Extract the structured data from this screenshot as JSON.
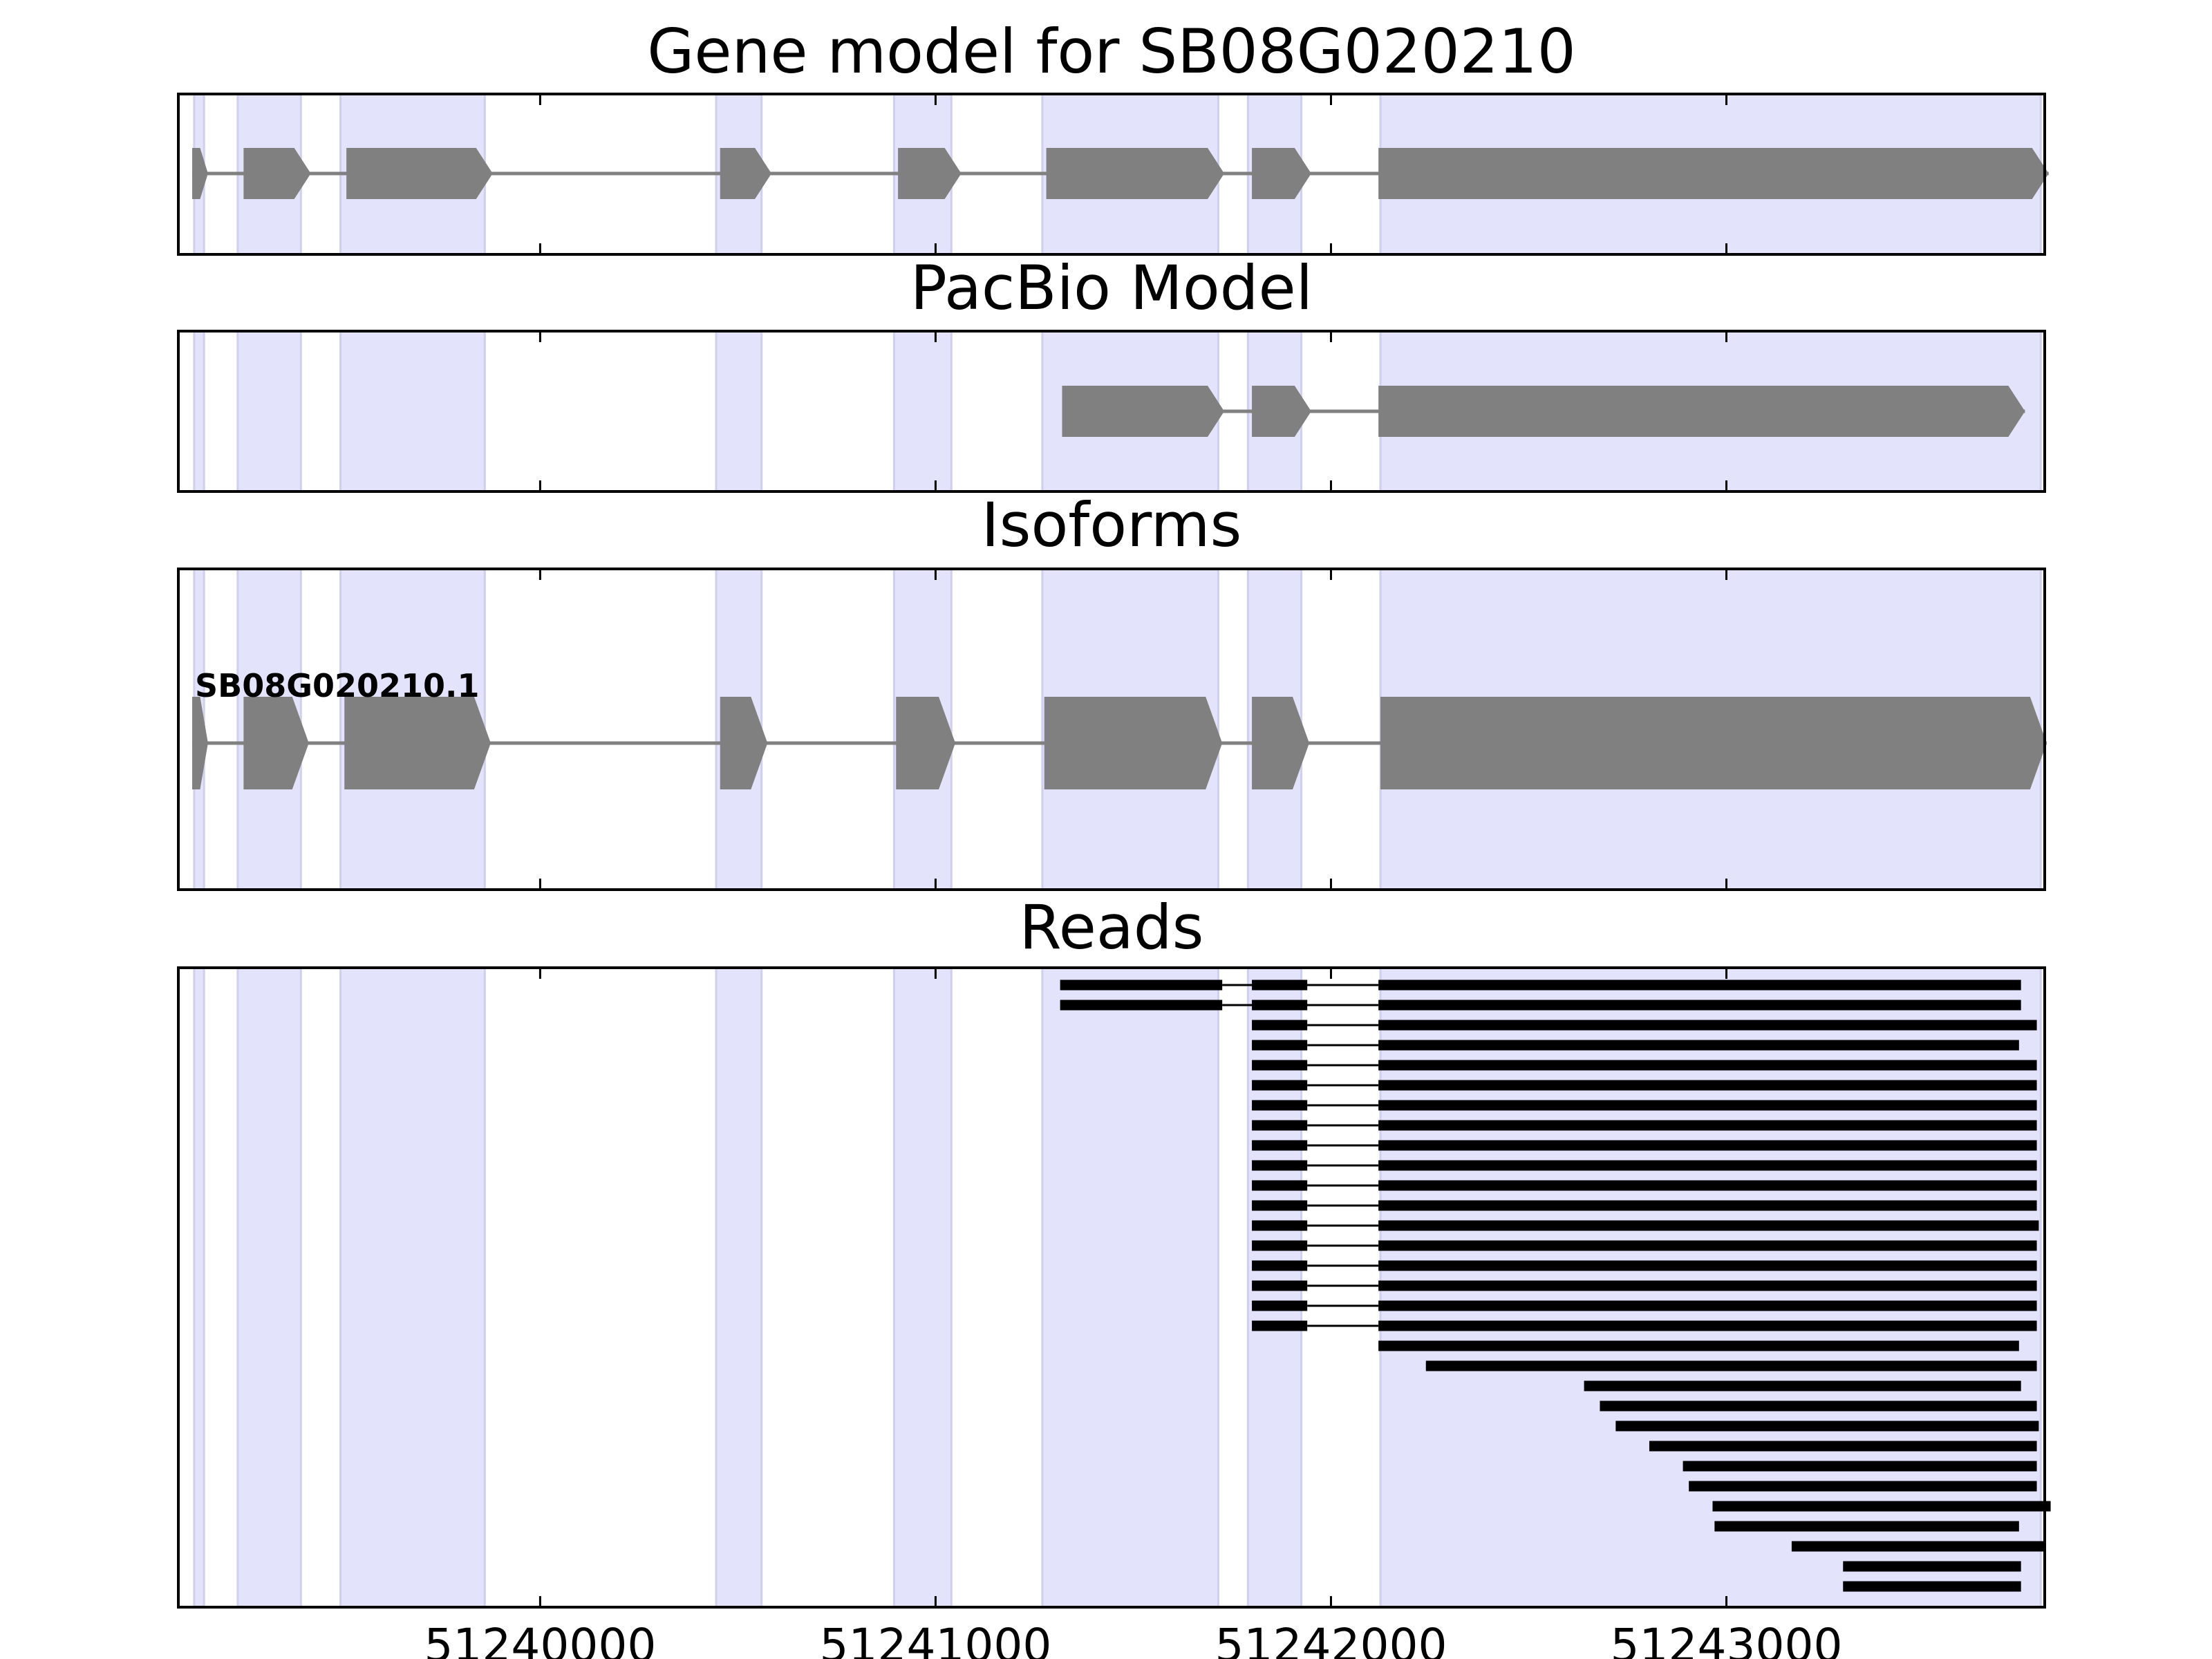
{
  "chart_data": {
    "type": "gene-track",
    "x_range": [
      51239085,
      51243805
    ],
    "x_ticks": [
      51240000,
      51241000,
      51242000,
      51243000
    ],
    "x_tick_labels": [
      "51240000",
      "51241000",
      "51242000",
      "51243000"
    ],
    "highlight_color": "#e3e3fb",
    "feature_color": "#808080",
    "read_color": "#000000",
    "exon_regions": [
      [
        51239125,
        51239150
      ],
      [
        51239235,
        51239395
      ],
      [
        51239495,
        51239860
      ],
      [
        51240445,
        51240560
      ],
      [
        51240895,
        51241040
      ],
      [
        51241270,
        51241715
      ],
      [
        51241790,
        51241925
      ],
      [
        51242125,
        51243795
      ]
    ],
    "panels": [
      {
        "title": "Gene model for SB08G020210",
        "exons": [
          [
            51239120,
            51239160
          ],
          [
            51239250,
            51239420
          ],
          [
            51239510,
            51239880
          ],
          [
            51240455,
            51240585
          ],
          [
            51240905,
            51241065
          ],
          [
            51241280,
            51241730
          ],
          [
            51241800,
            51241950
          ],
          [
            51242120,
            51243815
          ]
        ]
      },
      {
        "title": "PacBio Model",
        "exons": [
          [
            51241320,
            51241730
          ],
          [
            51241800,
            51241950
          ],
          [
            51242120,
            51243755
          ]
        ]
      },
      {
        "title": "Isoforms",
        "isoform_label": "SB08G020210.1",
        "exons": [
          [
            51239120,
            51239160
          ],
          [
            51239250,
            51239415
          ],
          [
            51239505,
            51239875
          ],
          [
            51240455,
            51240575
          ],
          [
            51240900,
            51241050
          ],
          [
            51241275,
            51241725
          ],
          [
            51241800,
            51241945
          ],
          [
            51242125,
            51243810
          ]
        ]
      },
      {
        "title": "Reads"
      }
    ],
    "reads": [
      [
        [
          51241315,
          51241725
        ],
        [
          51241800,
          51241940
        ],
        [
          51242120,
          51243745
        ]
      ],
      [
        [
          51241315,
          51241725
        ],
        [
          51241800,
          51241940
        ],
        [
          51242120,
          51243745
        ]
      ],
      [
        [
          51241800,
          51241940
        ],
        [
          51242120,
          51243785
        ]
      ],
      [
        [
          51241800,
          51241940
        ],
        [
          51242120,
          51243740
        ]
      ],
      [
        [
          51241800,
          51241940
        ],
        [
          51242120,
          51243785
        ]
      ],
      [
        [
          51241800,
          51241940
        ],
        [
          51242120,
          51243785
        ]
      ],
      [
        [
          51241800,
          51241940
        ],
        [
          51242120,
          51243785
        ]
      ],
      [
        [
          51241800,
          51241940
        ],
        [
          51242120,
          51243785
        ]
      ],
      [
        [
          51241800,
          51241940
        ],
        [
          51242120,
          51243785
        ]
      ],
      [
        [
          51241800,
          51241940
        ],
        [
          51242120,
          51243785
        ]
      ],
      [
        [
          51241800,
          51241940
        ],
        [
          51242120,
          51243785
        ]
      ],
      [
        [
          51241800,
          51241940
        ],
        [
          51242120,
          51243785
        ]
      ],
      [
        [
          51241800,
          51241940
        ],
        [
          51242120,
          51243790
        ]
      ],
      [
        [
          51241800,
          51241940
        ],
        [
          51242120,
          51243785
        ]
      ],
      [
        [
          51241800,
          51241940
        ],
        [
          51242120,
          51243785
        ]
      ],
      [
        [
          51241800,
          51241940
        ],
        [
          51242120,
          51243785
        ]
      ],
      [
        [
          51241800,
          51241940
        ],
        [
          51242120,
          51243785
        ]
      ],
      [
        [
          51241800,
          51241940
        ],
        [
          51242120,
          51243785
        ]
      ],
      [
        [
          51242120,
          51243740
        ]
      ],
      [
        [
          51242240,
          51243785
        ]
      ],
      [
        [
          51242640,
          51243745
        ]
      ],
      [
        [
          51242680,
          51243785
        ]
      ],
      [
        [
          51242720,
          51243790
        ]
      ],
      [
        [
          51242805,
          51243785
        ]
      ],
      [
        [
          51242890,
          51243785
        ]
      ],
      [
        [
          51242905,
          51243785
        ]
      ],
      [
        [
          51242965,
          51243820
        ]
      ],
      [
        [
          51242970,
          51243740
        ]
      ],
      [
        [
          51243165,
          51243805
        ]
      ],
      [
        [
          51243295,
          51243745
        ]
      ],
      [
        [
          51243295,
          51243745
        ]
      ]
    ]
  }
}
